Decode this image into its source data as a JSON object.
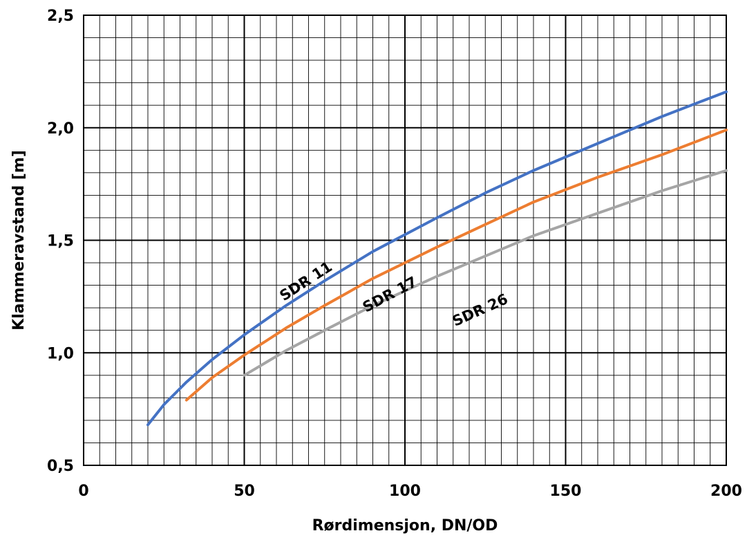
{
  "chart_data": {
    "type": "line",
    "title": "",
    "xlabel": "Rørdimensjon, DN/OD",
    "ylabel": "Klammeravstand [m]",
    "xlim": [
      0,
      200
    ],
    "ylim": [
      0.5,
      2.5
    ],
    "x_ticks": [
      0,
      50,
      100,
      150,
      200
    ],
    "x_tick_labels": [
      "0",
      "50",
      "100",
      "150",
      "200"
    ],
    "y_ticks": [
      0.5,
      1.0,
      1.5,
      2.0,
      2.5
    ],
    "y_tick_labels": [
      "0,5",
      "1,0",
      "1,5",
      "2,0",
      "2,5"
    ],
    "grid": true,
    "minor_grid": {
      "x_step": 5,
      "y_step": 0.1
    },
    "legend": "inline-labels",
    "series": [
      {
        "name": "SDR 11",
        "color": "#4472C4",
        "x": [
          20,
          25,
          32,
          40,
          50,
          63,
          75,
          90,
          110,
          125,
          140,
          160,
          180,
          200
        ],
        "y": [
          0.68,
          0.77,
          0.87,
          0.97,
          1.08,
          1.21,
          1.32,
          1.45,
          1.6,
          1.71,
          1.81,
          1.93,
          2.05,
          2.16
        ]
      },
      {
        "name": "SDR 17",
        "color": "#ED7D31",
        "x": [
          32,
          40,
          50,
          63,
          75,
          90,
          110,
          125,
          140,
          160,
          180,
          200
        ],
        "y": [
          0.79,
          0.89,
          0.99,
          1.11,
          1.21,
          1.33,
          1.47,
          1.57,
          1.67,
          1.78,
          1.88,
          1.99
        ]
      },
      {
        "name": "SDR 26",
        "color": "#A5A5A5",
        "x": [
          50,
          63,
          75,
          90,
          110,
          125,
          140,
          160,
          180,
          200
        ],
        "y": [
          0.9,
          1.01,
          1.1,
          1.21,
          1.34,
          1.43,
          1.52,
          1.62,
          1.72,
          1.81
        ]
      }
    ]
  }
}
